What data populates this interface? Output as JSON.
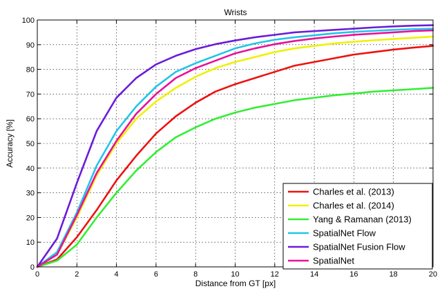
{
  "chart_data": {
    "type": "line",
    "title": "Wrists",
    "xlabel": "Distance from GT [px]",
    "ylabel": "Accuracy [%]",
    "xlim": [
      0,
      20
    ],
    "ylim": [
      0,
      100
    ],
    "xticks": [
      0,
      2,
      4,
      6,
      8,
      10,
      12,
      14,
      16,
      18,
      20
    ],
    "yticks": [
      0,
      10,
      20,
      30,
      40,
      50,
      60,
      70,
      80,
      90,
      100
    ],
    "grid": true,
    "legend_position": "bottom-right",
    "x": [
      0,
      1,
      2,
      3,
      4,
      5,
      6,
      7,
      8,
      9,
      10,
      11,
      12,
      13,
      14,
      15,
      16,
      17,
      18,
      19,
      20
    ],
    "series": [
      {
        "name": "Charles et al. (2013)",
        "color": "#ee1111",
        "values": [
          0,
          3,
          12,
          23,
          35,
          45,
          54,
          61,
          66.5,
          71,
          74,
          76.5,
          79,
          81.5,
          83,
          84.5,
          86,
          87,
          88,
          88.8,
          89.5
        ]
      },
      {
        "name": "Charles et al. (2014)",
        "color": "#f0f000",
        "values": [
          0,
          5,
          20,
          37,
          50,
          60,
          67,
          72.5,
          77,
          80.5,
          83,
          85,
          87,
          88.5,
          89.5,
          90.5,
          91.2,
          91.8,
          92.3,
          92.8,
          93.3
        ]
      },
      {
        "name": "Yang & Ramanan (2013)",
        "color": "#33ee33",
        "values": [
          0,
          2.5,
          9,
          20,
          30,
          39,
          46.5,
          52.5,
          56.5,
          60,
          62.5,
          64.5,
          66,
          67.5,
          68.5,
          69.5,
          70.2,
          71,
          71.5,
          72,
          72.5
        ]
      },
      {
        "name": "SpatialNet Flow",
        "color": "#22c4e8",
        "values": [
          0,
          6,
          22,
          41,
          55,
          65,
          73,
          79,
          82.5,
          85.5,
          88.5,
          90.5,
          92,
          93,
          93.8,
          94.6,
          95.2,
          95.6,
          96,
          96.3,
          96.5
        ]
      },
      {
        "name": "SpatialNet Fusion Flow",
        "color": "#6a1bdb",
        "values": [
          0,
          11.5,
          34,
          55,
          68.5,
          76.5,
          82,
          85.5,
          88.2,
          90.2,
          91.7,
          93,
          94,
          95,
          95.5,
          96,
          96.5,
          97,
          97.4,
          97.7,
          97.9
        ]
      },
      {
        "name": "SpatialNet",
        "color": "#e8109a",
        "values": [
          0,
          5,
          21,
          38,
          51,
          62,
          70,
          76.5,
          80.5,
          83.5,
          86.5,
          88.5,
          90.2,
          91.5,
          92.5,
          93.3,
          94,
          94.5,
          95,
          95.5,
          95.8
        ]
      }
    ]
  }
}
